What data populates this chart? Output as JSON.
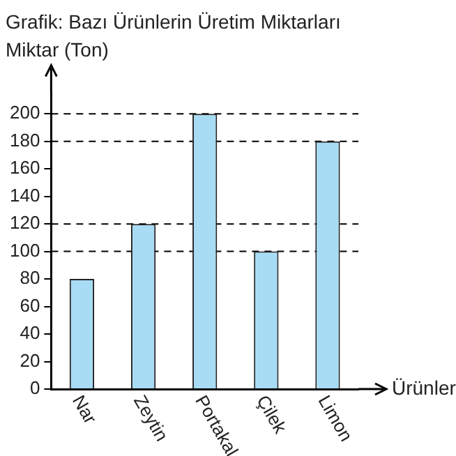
{
  "chart_data": {
    "type": "bar",
    "title": "Grafik: Bazı Ürünlerin Üretim Miktarları",
    "xlabel": "Ürünler",
    "ylabel": "Miktar (Ton)",
    "categories": [
      "Nar",
      "Zeytin",
      "Portakal",
      "Çilek",
      "Limon"
    ],
    "values": [
      80,
      120,
      200,
      100,
      180
    ],
    "color": "#a8dcf4",
    "ylim": [
      0,
      215
    ],
    "yticks": [
      0,
      20,
      40,
      60,
      80,
      100,
      120,
      140,
      160,
      180,
      200
    ],
    "ref_lines": [
      {
        "axis": "y",
        "value": 100,
        "line_style": "dashed"
      },
      {
        "axis": "y",
        "value": 120,
        "line_style": "dashed"
      },
      {
        "axis": "y",
        "value": 180,
        "line_style": "dashed"
      },
      {
        "axis": "y",
        "value": 200,
        "line_style": "dashed"
      }
    ],
    "legend": false
  }
}
